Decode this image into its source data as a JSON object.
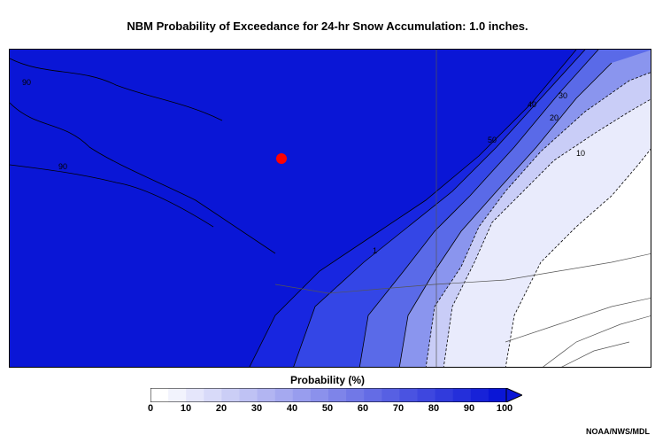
{
  "title": "NBM Probability of Exceedance for 24-hr Snow Accumulation: 1.0 inches.",
  "legend": {
    "title": "Probability (%)",
    "ticks": [
      "0",
      "10",
      "20",
      "30",
      "40",
      "50",
      "60",
      "70",
      "80",
      "90",
      "100"
    ]
  },
  "contour_labels": [
    "90",
    "90",
    "50",
    "40",
    "30",
    "20",
    "10",
    "1"
  ],
  "credit": "NOAA/NWS/MDL",
  "colors": {
    "high_prob": "#0a16d6",
    "band_90": "#1826e0",
    "band_70": "#3446e6",
    "band_50": "#5a6ae8",
    "band_30": "#8a95ee",
    "band_10": "#c9cdf7",
    "low_prob": "#e9ebfc",
    "zero": "#ffffff",
    "marker": "#ff0000"
  }
}
